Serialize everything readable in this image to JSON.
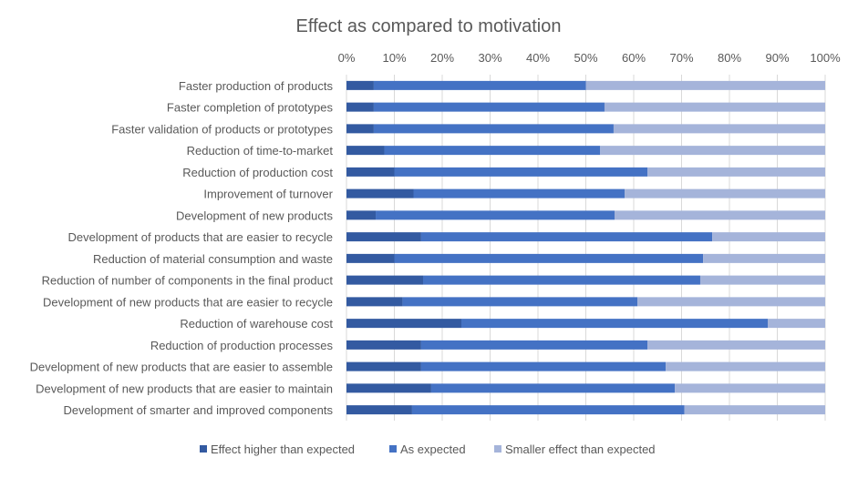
{
  "chart_data": {
    "type": "bar",
    "orientation": "horizontal",
    "stacked": "percent",
    "title": "Effect as compared to motivation",
    "xlabel": "",
    "ylabel": "",
    "xlim": [
      0,
      100
    ],
    "x_ticks": [
      "0%",
      "10%",
      "20%",
      "30%",
      "40%",
      "50%",
      "60%",
      "70%",
      "80%",
      "90%",
      "100%"
    ],
    "grid": true,
    "legend_position": "bottom",
    "categories": [
      "Faster production of products",
      "Faster completion of prototypes",
      "Faster validation of products or prototypes",
      "Reduction of time-to-market",
      "Reduction of production cost",
      "Improvement of turnover",
      "Development of new products",
      "Development of products that are easier to recycle",
      "Reduction of material consumption and waste",
      "Reduction of number of components in the final product",
      "Development of new products that are easier to recycle",
      "Reduction of warehouse cost",
      "Reduction of production processes",
      "Development of new products that are easier to assemble",
      "Development of new products that are easier to maintain",
      "Development of smarter and improved components"
    ],
    "series": [
      {
        "name": "Effect higher than expected",
        "color": "#335AA1",
        "values": [
          5.7,
          5.7,
          5.7,
          7.9,
          10.0,
          14.0,
          6.1,
          15.6,
          10.0,
          16.0,
          11.7,
          24.0,
          15.6,
          15.6,
          17.7,
          13.7
        ]
      },
      {
        "name": "As expected",
        "color": "#4472C4",
        "values": [
          44.3,
          48.2,
          50.1,
          45.1,
          52.9,
          44.1,
          49.9,
          60.8,
          64.5,
          57.9,
          49.1,
          64.0,
          47.3,
          51.1,
          50.9,
          56.9
        ]
      },
      {
        "name": "Smaller effect than expected",
        "color": "#A5B4DA",
        "values": [
          50.0,
          46.1,
          44.2,
          47.0,
          37.1,
          41.9,
          44.0,
          23.6,
          25.5,
          26.1,
          39.2,
          12.0,
          37.1,
          33.3,
          31.4,
          29.4
        ]
      }
    ]
  }
}
